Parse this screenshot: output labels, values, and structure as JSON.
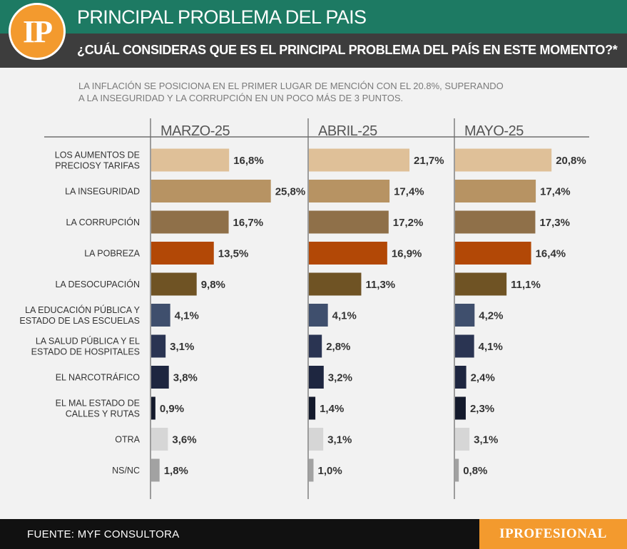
{
  "header": {
    "logo_text": "IP",
    "title": "PRINCIPAL PROBLEMA DEL PAIS",
    "question": "¿CUÁL CONSIDERAS QUE ES EL PRINCIPAL PROBLEMA DEL PAÍS EN ESTE MOMENTO?*"
  },
  "intro": {
    "line1": "LA INFLACIÓN SE POSICIONA EN EL PRIMER LUGAR DE MENCIÓN CON EL 20.8%, SUPERANDO",
    "line2": "A LA INSEGURIDAD Y LA CORRUPCIÓN EN UN POCO MÁS DE 3 PUNTOS."
  },
  "footer": {
    "source": "FUENTE: MYF CONSULTORA",
    "brand": "IPROFESIONAL"
  },
  "colors": {
    "header_green": "#1d7a63",
    "header_dark": "#3d3d3d",
    "accent_orange": "#f39a2e"
  },
  "chart_data": {
    "type": "bar",
    "orientation": "horizontal",
    "categories": [
      [
        "LOS AUMENTOS DE",
        "PRECIOSY TARIFAS"
      ],
      [
        "LA INSEGURIDAD"
      ],
      [
        "LA CORRUPCIÓN"
      ],
      [
        "LA POBREZA"
      ],
      [
        "LA DESOCUPACIÓN"
      ],
      [
        "LA EDUCACIÓN PÚBLICA Y",
        "ESTADO DE LAS ESCUELAS"
      ],
      [
        "LA SALUD PÚBLICA Y EL",
        "ESTADO DE HOSPITALES"
      ],
      [
        "EL NARCOTRÁFICO"
      ],
      [
        "EL MAL ESTADO DE",
        "CALLES Y RUTAS"
      ],
      [
        "OTRA"
      ],
      [
        "NS/NC"
      ]
    ],
    "bar_colors": [
      "#dfc098",
      "#b79363",
      "#8f7049",
      "#b24806",
      "#6f5324",
      "#3f4f6d",
      "#2a3452",
      "#1e2640",
      "#141a2c",
      "#d6d6d6",
      "#a2a2a2"
    ],
    "series": [
      {
        "name": "MARZO-25",
        "values": [
          16.8,
          25.8,
          16.7,
          13.5,
          9.8,
          4.1,
          3.1,
          3.8,
          0.9,
          3.6,
          1.8
        ],
        "labels": [
          "16,8%",
          "25,8%",
          "16,7%",
          "13,5%",
          "9,8%",
          "4,1%",
          "3,1%",
          "3,8%",
          "0,9%",
          "3,6%",
          "1,8%"
        ]
      },
      {
        "name": "ABRIL-25",
        "values": [
          21.7,
          17.4,
          17.2,
          16.9,
          11.3,
          4.1,
          2.8,
          3.2,
          1.4,
          3.1,
          1.0
        ],
        "labels": [
          "21,7%",
          "17,4%",
          "17,2%",
          "16,9%",
          "11,3%",
          "4,1%",
          "2,8%",
          "3,2%",
          "1,4%",
          "3,1%",
          "1,0%"
        ]
      },
      {
        "name": "MAYO-25",
        "values": [
          20.8,
          17.4,
          17.3,
          16.4,
          11.1,
          4.2,
          4.1,
          2.4,
          2.3,
          3.1,
          0.8
        ],
        "labels": [
          "20,8%",
          "17,4%",
          "17,3%",
          "16,4%",
          "11,1%",
          "4,2%",
          "4,1%",
          "2,4%",
          "2,3%",
          "3,1%",
          "0,8%"
        ]
      }
    ]
  }
}
